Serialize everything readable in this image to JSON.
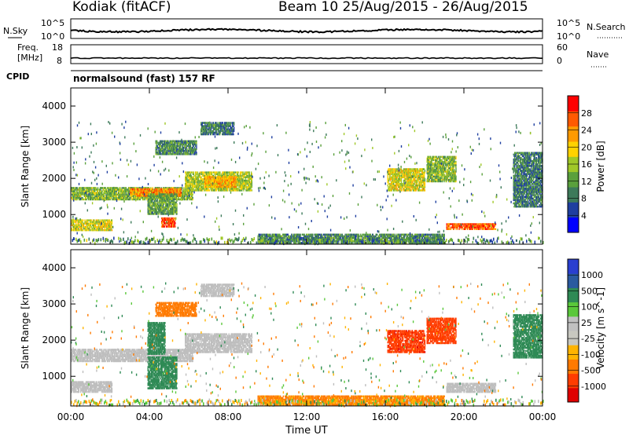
{
  "header": {
    "station": "Kodiak (fitACF)",
    "beam_dates": "Beam 10 25/Aug/2015 - 26/Aug/2015"
  },
  "noise_panel": {
    "left_label": "N.Sky",
    "right_label": "N.Search",
    "left_ticks": [
      "10^5",
      "10^0"
    ],
    "right_ticks": [
      "10^5",
      "10^0"
    ]
  },
  "freq_panel": {
    "left_label_1": "Freq.",
    "left_label_2": "[MHz]",
    "right_label": "Nave",
    "left_ticks": [
      "18",
      "8"
    ],
    "right_ticks": [
      "60",
      "0"
    ]
  },
  "cpid_panel": {
    "label": "CPID",
    "text": "normalsound (fast) 157 RF"
  },
  "colors": {
    "power_scale": [
      "#0000ff",
      "#1f3fa0",
      "#3d7a5a",
      "#5aa03c",
      "#a0c828",
      "#ffd200",
      "#ff9a00",
      "#ff5a00",
      "#ff0000"
    ],
    "velocity_scale": [
      "#2a3fd0",
      "#2a5aa0",
      "#2f8a55",
      "#5ac83a",
      "#c0c0c0",
      "#c8c8c0",
      "#ffb400",
      "#ff7a00",
      "#ff3c00",
      "#e00000"
    ],
    "ground_scatter": "#bebebe"
  },
  "chart_data": [
    {
      "type": "heatmap",
      "panel": "power",
      "ylabel": "Slant Range [km]",
      "yticks": [
        "4000",
        "3000",
        "2000",
        "1000"
      ],
      "ylim": [
        180,
        4500
      ],
      "xlim": [
        0,
        24
      ],
      "xticks": [
        "00:00",
        "04:00",
        "08:00",
        "12:00",
        "16:00",
        "20:00",
        "00:00"
      ],
      "colorbar_label": "Power [dB]",
      "colorbar_ticks": [
        "28",
        "24",
        "20",
        "16",
        "12",
        "8",
        "4"
      ],
      "colorbar_range": [
        0,
        32
      ],
      "regions": [
        {
          "t0": 0.0,
          "t1": 6.2,
          "r0": 1400,
          "r1": 1750,
          "value": 14
        },
        {
          "t0": 3.0,
          "t1": 5.6,
          "r0": 1500,
          "r1": 1700,
          "value": 24
        },
        {
          "t0": 5.8,
          "t1": 9.2,
          "r0": 1650,
          "r1": 2150,
          "value": 16
        },
        {
          "t0": 6.8,
          "t1": 8.4,
          "r0": 1750,
          "r1": 2050,
          "value": 22
        },
        {
          "t0": 3.9,
          "t1": 5.4,
          "r0": 1000,
          "r1": 1550,
          "value": 12
        },
        {
          "t0": 4.6,
          "t1": 5.3,
          "r0": 650,
          "r1": 900,
          "value": 28
        },
        {
          "t0": 0.0,
          "t1": 2.1,
          "r0": 550,
          "r1": 850,
          "value": 18
        },
        {
          "t0": 4.3,
          "t1": 6.4,
          "r0": 2650,
          "r1": 3050,
          "value": 10
        },
        {
          "t0": 6.6,
          "t1": 8.3,
          "r0": 3200,
          "r1": 3550,
          "value": 9
        },
        {
          "t0": 16.1,
          "t1": 18.0,
          "r0": 1650,
          "r1": 2250,
          "value": 18
        },
        {
          "t0": 18.1,
          "t1": 19.6,
          "r0": 1900,
          "r1": 2600,
          "value": 14
        },
        {
          "t0": 19.1,
          "t1": 21.6,
          "r0": 580,
          "r1": 760,
          "value": 26
        },
        {
          "t0": 22.5,
          "t1": 24.0,
          "r0": 1200,
          "r1": 2700,
          "value": 9
        },
        {
          "t0": 9.5,
          "t1": 19.0,
          "r0": 200,
          "r1": 450,
          "value": 10
        }
      ]
    },
    {
      "type": "heatmap",
      "panel": "velocity",
      "ylabel": "Slant Range [km]",
      "yticks": [
        "4000",
        "3000",
        "2000",
        "1000"
      ],
      "ylim": [
        180,
        4500
      ],
      "xlim": [
        0,
        24
      ],
      "xticks": [
        "00:00",
        "04:00",
        "08:00",
        "12:00",
        "16:00",
        "20:00",
        "00:00"
      ],
      "xlabel": "Time UT",
      "colorbar_label": "Velocity [m s^-1]",
      "colorbar_ticks": [
        "1000",
        "500",
        "100",
        "25",
        "-25",
        "-100",
        "-500",
        "-1000"
      ],
      "regions": [
        {
          "t0": 0.0,
          "t1": 6.2,
          "r0": 1400,
          "r1": 1750,
          "value": 0
        },
        {
          "t0": 5.8,
          "t1": 9.2,
          "r0": 1650,
          "r1": 2150,
          "value": 0
        },
        {
          "t0": 3.9,
          "t1": 5.4,
          "r0": 650,
          "r1": 1550,
          "value": 300
        },
        {
          "t0": 3.9,
          "t1": 4.8,
          "r0": 1600,
          "r1": 2500,
          "value": 150
        },
        {
          "t0": 0.0,
          "t1": 2.1,
          "r0": 550,
          "r1": 850,
          "value": 0
        },
        {
          "t0": 4.3,
          "t1": 6.4,
          "r0": 2650,
          "r1": 3050,
          "value": -150
        },
        {
          "t0": 6.6,
          "t1": 8.3,
          "r0": 3200,
          "r1": 3550,
          "value": 0
        },
        {
          "t0": 16.1,
          "t1": 18.0,
          "r0": 1650,
          "r1": 2250,
          "value": -800
        },
        {
          "t0": 18.1,
          "t1": 19.6,
          "r0": 1900,
          "r1": 2600,
          "value": -700
        },
        {
          "t0": 19.1,
          "t1": 21.6,
          "r0": 550,
          "r1": 800,
          "value": 0
        },
        {
          "t0": 22.5,
          "t1": 24.0,
          "r0": 1500,
          "r1": 2700,
          "value": 200
        },
        {
          "t0": 9.5,
          "t1": 19.0,
          "r0": 200,
          "r1": 450,
          "value": -120
        }
      ]
    }
  ]
}
